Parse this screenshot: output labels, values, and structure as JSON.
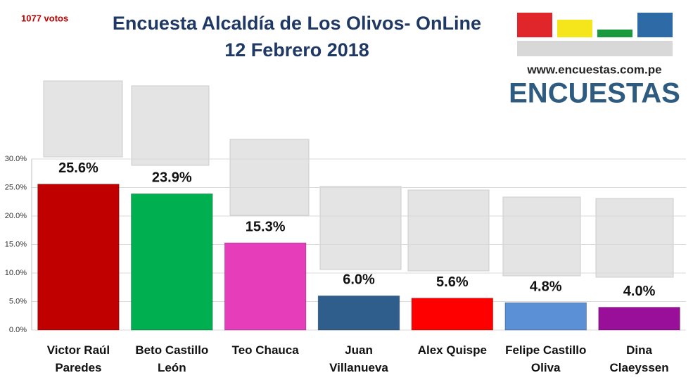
{
  "chart_data": {
    "type": "bar",
    "title": "Encuesta Alcaldía de Los Olivos- OnLine",
    "subtitle": "12 Febrero 2018",
    "annotation": "1077 votos",
    "logo_url": "www.encuestas.com.pe",
    "logo_text": "ENCUESTAS",
    "categories": [
      "Victor Raúl Paredes",
      "Beto Castillo León",
      "Teo Chauca",
      "Juan Villanueva",
      "Alex Quispe",
      "Felipe Castillo Oliva",
      "Dina Claeyssen"
    ],
    "values": [
      25.6,
      23.9,
      15.3,
      6.0,
      5.6,
      4.8,
      4.0
    ],
    "value_labels": [
      "25.6%",
      "23.9%",
      "15.3%",
      "6.0%",
      "5.6%",
      "4.8%",
      "4.0%"
    ],
    "colors": [
      "#c00000",
      "#00b050",
      "#e63dba",
      "#2f5d8c",
      "#ff0000",
      "#5b8fd6",
      "#9a0f9a"
    ],
    "ylim": [
      0,
      30
    ],
    "yticks": [
      {
        "value": 0,
        "label": "0.0%"
      },
      {
        "value": 5,
        "label": "5.0%"
      },
      {
        "value": 10,
        "label": "10.0%"
      },
      {
        "value": 15,
        "label": "15.0%"
      },
      {
        "value": 20,
        "label": "20.0%"
      },
      {
        "value": 25,
        "label": "25.0%"
      },
      {
        "value": 30,
        "label": "30.0%"
      }
    ],
    "grid": true
  }
}
